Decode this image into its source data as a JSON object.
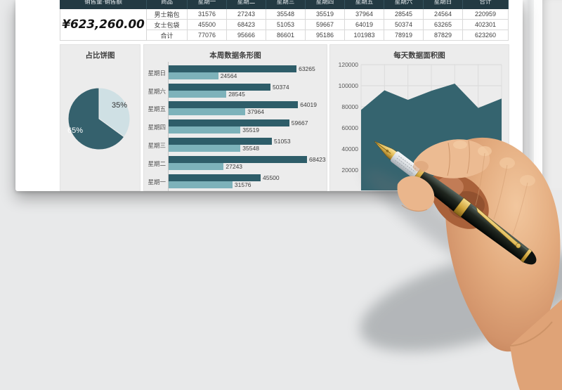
{
  "page": {
    "background": "#e8e9ea",
    "card": "#ffffff",
    "accent_dark": "#233a43"
  },
  "summary": {
    "amount": "¥623,260.00"
  },
  "table": {
    "metric_header": "销售量·销售额",
    "product_header": "商品",
    "day_headers": [
      "星期一",
      "星期二",
      "星期三",
      "星期四",
      "星期五",
      "星期六",
      "星期日"
    ],
    "total_header": "合计",
    "rows": [
      {
        "name": "男士箱包",
        "values": [
          "31576",
          "27243",
          "35548",
          "35519",
          "37964",
          "28545",
          "24564"
        ],
        "total": "220959"
      },
      {
        "name": "女士包袋",
        "values": [
          "45500",
          "68423",
          "51053",
          "59667",
          "64019",
          "50374",
          "63265"
        ],
        "total": "402301"
      },
      {
        "name": "合计",
        "values": [
          "77076",
          "95666",
          "86601",
          "95186",
          "101983",
          "78919",
          "87829"
        ],
        "total": "623260"
      }
    ]
  },
  "chart_data": [
    {
      "type": "pie",
      "title": "占比饼图",
      "slices": [
        {
          "label": "65%",
          "value": 65,
          "color": "#35616d"
        },
        {
          "label": "35%",
          "value": 35,
          "color": "#cfe0e4"
        }
      ],
      "start_angle_deg": -90,
      "legend": "none"
    },
    {
      "type": "bar",
      "title": "本周数据条形图",
      "orientation": "horizontal",
      "categories": [
        "星期日",
        "星期六",
        "星期五",
        "星期四",
        "星期三",
        "星期二",
        "星期一"
      ],
      "series": [
        {
          "name": "dark",
          "color": "#2e5d69",
          "values": [
            63265,
            50374,
            64019,
            59667,
            51053,
            68423,
            45500
          ]
        },
        {
          "name": "light",
          "color": "#7db2ba",
          "values": [
            24564,
            28545,
            37964,
            35519,
            35548,
            27243,
            31576
          ]
        }
      ],
      "xlim": [
        0,
        70000
      ],
      "value_labels": true,
      "legend": "none"
    },
    {
      "type": "area",
      "title": "每天数据面积图",
      "values": [
        77076,
        95666,
        86601,
        95186,
        101983,
        78919,
        87829
      ],
      "yticks": [
        120000,
        100000,
        80000,
        60000,
        40000,
        20000
      ],
      "grid": true,
      "color": "#35646f",
      "x_labels_visible": false,
      "legend": "none"
    }
  ]
}
